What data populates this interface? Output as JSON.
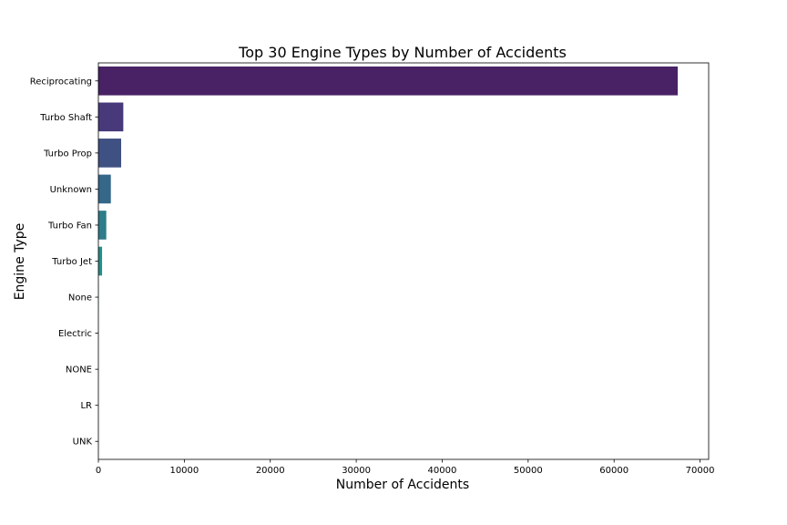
{
  "chart_data": {
    "type": "bar",
    "orientation": "horizontal",
    "title": "Top 30 Engine Types by Number of Accidents",
    "xlabel": "Number of Accidents",
    "ylabel": "Engine Type",
    "xlim": [
      0,
      71000
    ],
    "xticks": [
      0,
      10000,
      20000,
      30000,
      40000,
      50000,
      60000,
      70000
    ],
    "grid": false,
    "categories": [
      "Reciprocating",
      "Turbo Shaft",
      "Turbo Prop",
      "Unknown",
      "Turbo Fan",
      "Turbo Jet",
      "None",
      "Electric",
      "NONE",
      "LR",
      "UNK"
    ],
    "values": [
      67400,
      2900,
      2650,
      1450,
      920,
      430,
      20,
      10,
      3,
      2,
      1
    ],
    "colors": [
      "#482264",
      "#47397a",
      "#3f5082",
      "#356789",
      "#2d7c8a",
      "#248f89",
      "#20a385",
      "#37b478",
      "#5dc463",
      "#88d14c",
      "#b4dd2c"
    ]
  }
}
